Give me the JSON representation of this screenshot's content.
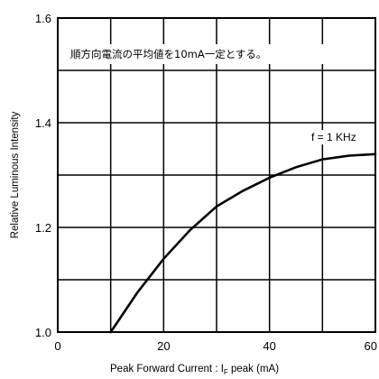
{
  "chart_data": {
    "type": "line",
    "title": "",
    "xlabel": "Peak Forward Current : I",
    "xlabel_subscript": "F",
    "xlabel_tail": " peak (mA)",
    "ylabel": "Relative Luminous Intensity",
    "xlim": [
      0,
      60
    ],
    "ylim": [
      1.0,
      1.6
    ],
    "x_ticks": [
      "0",
      "20",
      "40",
      "60"
    ],
    "x_tick_values": [
      0,
      20,
      40,
      60
    ],
    "y_ticks": [
      "1.0",
      "1.2",
      "1.4",
      "1.6"
    ],
    "y_tick_values": [
      1.0,
      1.2,
      1.4,
      1.6
    ],
    "grid": true,
    "annotation": "順方向電流の平均値を10mA一定とする。",
    "series": [
      {
        "name": "f = 1 KHz",
        "x": [
          10,
          15,
          20,
          25,
          30,
          35,
          40,
          45,
          50,
          55,
          60
        ],
        "y": [
          1.0,
          1.075,
          1.14,
          1.195,
          1.24,
          1.27,
          1.295,
          1.315,
          1.33,
          1.337,
          1.34
        ]
      }
    ]
  }
}
